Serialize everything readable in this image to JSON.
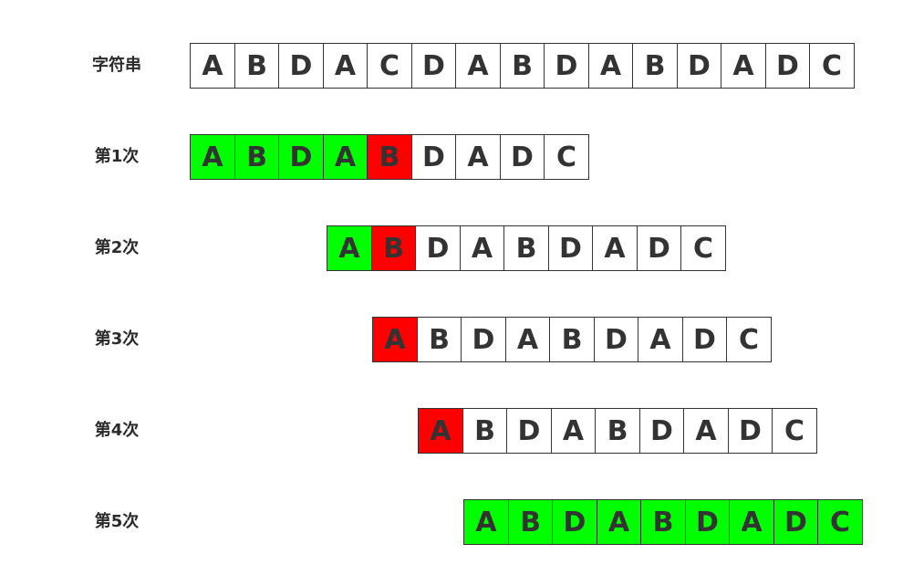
{
  "rows": [
    {
      "label": "字符串",
      "offset": 0,
      "cells": [
        {
          "ch": "A",
          "state": "none"
        },
        {
          "ch": "B",
          "state": "none"
        },
        {
          "ch": "D",
          "state": "none"
        },
        {
          "ch": "A",
          "state": "none"
        },
        {
          "ch": "C",
          "state": "none"
        },
        {
          "ch": "D",
          "state": "none"
        },
        {
          "ch": "A",
          "state": "none"
        },
        {
          "ch": "B",
          "state": "none"
        },
        {
          "ch": "D",
          "state": "none"
        },
        {
          "ch": "A",
          "state": "none"
        },
        {
          "ch": "B",
          "state": "none"
        },
        {
          "ch": "D",
          "state": "none"
        },
        {
          "ch": "A",
          "state": "none"
        },
        {
          "ch": "D",
          "state": "none"
        },
        {
          "ch": "C",
          "state": "none"
        }
      ]
    },
    {
      "label": "第1次",
      "offset": 0,
      "cells": [
        {
          "ch": "A",
          "state": "match"
        },
        {
          "ch": "B",
          "state": "match"
        },
        {
          "ch": "D",
          "state": "match"
        },
        {
          "ch": "A",
          "state": "match"
        },
        {
          "ch": "B",
          "state": "mismatch"
        },
        {
          "ch": "D",
          "state": "none"
        },
        {
          "ch": "A",
          "state": "none"
        },
        {
          "ch": "D",
          "state": "none"
        },
        {
          "ch": "C",
          "state": "none"
        }
      ]
    },
    {
      "label": "第2次",
      "offset": 3,
      "cells": [
        {
          "ch": "A",
          "state": "match"
        },
        {
          "ch": "B",
          "state": "mismatch"
        },
        {
          "ch": "D",
          "state": "none"
        },
        {
          "ch": "A",
          "state": "none"
        },
        {
          "ch": "B",
          "state": "none"
        },
        {
          "ch": "D",
          "state": "none"
        },
        {
          "ch": "A",
          "state": "none"
        },
        {
          "ch": "D",
          "state": "none"
        },
        {
          "ch": "C",
          "state": "none"
        }
      ]
    },
    {
      "label": "第3次",
      "offset": 4,
      "cells": [
        {
          "ch": "A",
          "state": "mismatch"
        },
        {
          "ch": "B",
          "state": "none"
        },
        {
          "ch": "D",
          "state": "none"
        },
        {
          "ch": "A",
          "state": "none"
        },
        {
          "ch": "B",
          "state": "none"
        },
        {
          "ch": "D",
          "state": "none"
        },
        {
          "ch": "A",
          "state": "none"
        },
        {
          "ch": "D",
          "state": "none"
        },
        {
          "ch": "C",
          "state": "none"
        }
      ]
    },
    {
      "label": "第4次",
      "offset": 5,
      "cells": [
        {
          "ch": "A",
          "state": "mismatch"
        },
        {
          "ch": "B",
          "state": "none"
        },
        {
          "ch": "D",
          "state": "none"
        },
        {
          "ch": "A",
          "state": "none"
        },
        {
          "ch": "B",
          "state": "none"
        },
        {
          "ch": "D",
          "state": "none"
        },
        {
          "ch": "A",
          "state": "none"
        },
        {
          "ch": "D",
          "state": "none"
        },
        {
          "ch": "C",
          "state": "none"
        }
      ]
    },
    {
      "label": "第5次",
      "offset": 6,
      "cells": [
        {
          "ch": "A",
          "state": "match"
        },
        {
          "ch": "B",
          "state": "match"
        },
        {
          "ch": "D",
          "state": "match"
        },
        {
          "ch": "A",
          "state": "match"
        },
        {
          "ch": "B",
          "state": "match"
        },
        {
          "ch": "D",
          "state": "match"
        },
        {
          "ch": "A",
          "state": "match"
        },
        {
          "ch": "D",
          "state": "match"
        },
        {
          "ch": "C",
          "state": "match"
        }
      ]
    }
  ],
  "colors": {
    "match": "#00ff00",
    "mismatch": "#ff0000",
    "border": "#333333",
    "text": "#333333"
  }
}
